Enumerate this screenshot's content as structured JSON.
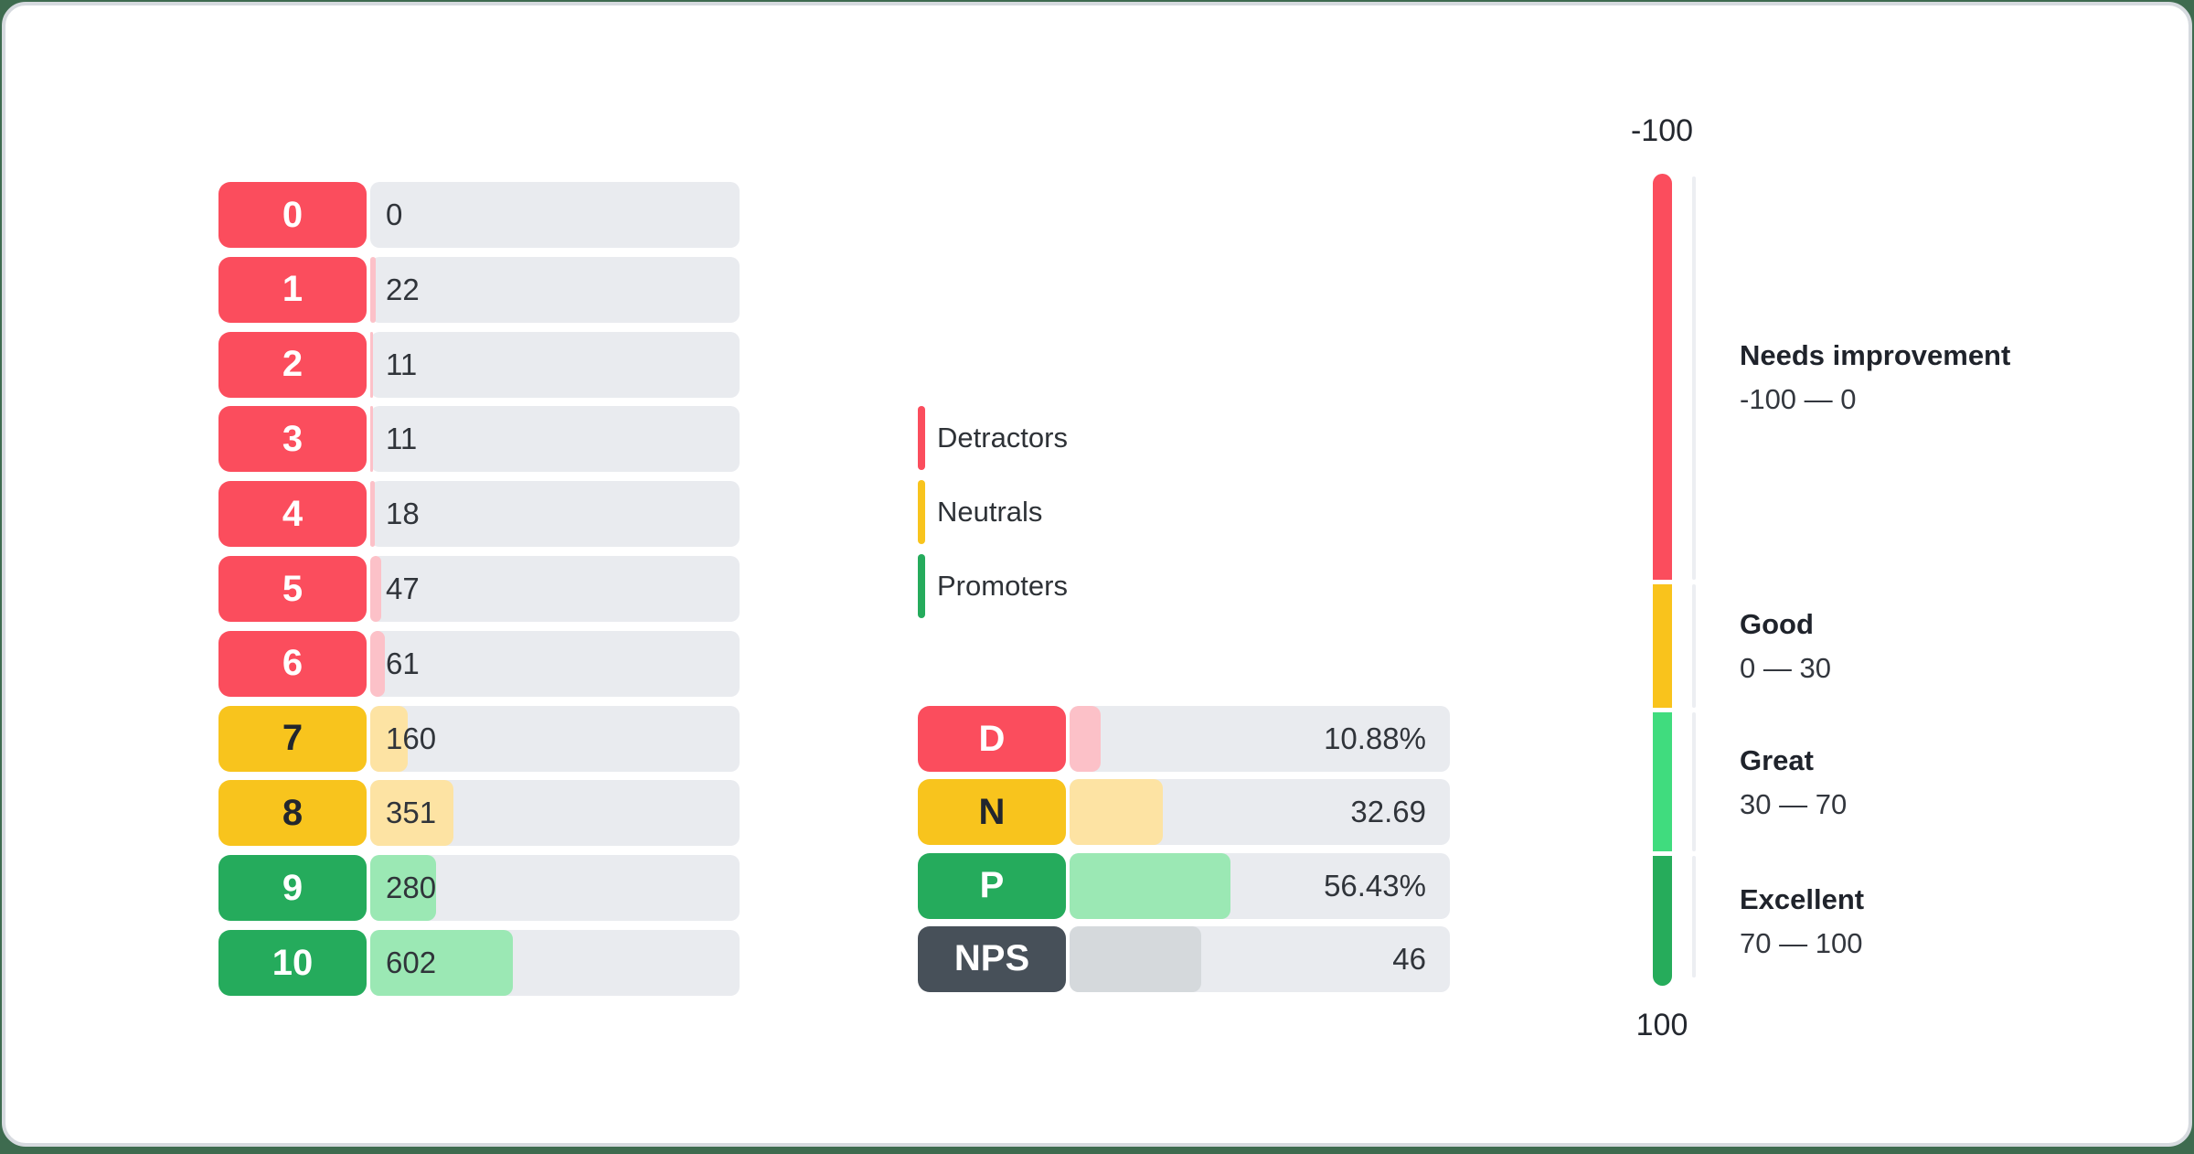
{
  "colors": {
    "page_bg": "#3E6B4F",
    "card_bg": "#FFFFFF",
    "card_border": "#D6DADF",
    "track": "#E9EBEF",
    "groups": {
      "detractor": {
        "badge": "#FB4D5D",
        "fill": "#FCC1C8",
        "text": "#FFFFFF"
      },
      "neutral": {
        "badge": "#F8C41D",
        "fill": "#FDE3A3",
        "text": "#22262E"
      },
      "promoter": {
        "badge": "#25AB5C",
        "fill": "#9BE8B4",
        "text": "#FFFFFF"
      },
      "nps": {
        "badge": "#475059",
        "fill": "#D5D9DC",
        "text": "#FFFFFF"
      }
    }
  },
  "distribution": {
    "rows": [
      {
        "label": "0",
        "value": 0,
        "display": "0",
        "group": "detractor"
      },
      {
        "label": "1",
        "value": 22,
        "display": "22",
        "group": "detractor"
      },
      {
        "label": "2",
        "value": 11,
        "display": "11",
        "group": "detractor"
      },
      {
        "label": "3",
        "value": 11,
        "display": "11",
        "group": "detractor"
      },
      {
        "label": "4",
        "value": 18,
        "display": "18",
        "group": "detractor"
      },
      {
        "label": "5",
        "value": 47,
        "display": "47",
        "group": "detractor"
      },
      {
        "label": "6",
        "value": 61,
        "display": "61",
        "group": "detractor"
      },
      {
        "label": "7",
        "value": 160,
        "display": "160",
        "group": "neutral"
      },
      {
        "label": "8",
        "value": 351,
        "display": "351",
        "group": "neutral"
      },
      {
        "label": "9",
        "value": 280,
        "display": "280",
        "group": "promoter"
      },
      {
        "label": "10",
        "value": 602,
        "display": "602",
        "group": "promoter"
      }
    ]
  },
  "legend": {
    "items": [
      {
        "label": "Detractors",
        "color": "#FB4D5D"
      },
      {
        "label": "Neutrals",
        "color": "#F8C41D"
      },
      {
        "label": "Promoters",
        "color": "#25AB5C"
      }
    ]
  },
  "summary": {
    "rows": [
      {
        "label": "D",
        "value": 10.88,
        "display": "10.88%",
        "group": "detractor"
      },
      {
        "label": "N",
        "value": 32.69,
        "display": "32.69",
        "group": "neutral"
      },
      {
        "label": "P",
        "value": 56.43,
        "display": "56.43%",
        "group": "promoter"
      },
      {
        "label": "NPS",
        "value": 46,
        "display": "46",
        "group": "nps"
      }
    ]
  },
  "gauge": {
    "top_label": "-100",
    "bottom_label": "100",
    "zones": [
      {
        "title": "Needs improvement",
        "range": "-100 — 0",
        "from": -100,
        "to": 0,
        "color": "#FB4D5D"
      },
      {
        "title": "Good",
        "range": "0 — 30",
        "from": 0,
        "to": 30,
        "color": "#F9C31C"
      },
      {
        "title": "Great",
        "range": "30 — 70",
        "from": 30,
        "to": 70,
        "color": "#40DC7E"
      },
      {
        "title": "Excellent",
        "range": "70 — 100",
        "from": 70,
        "to": 100,
        "color": "#26AC5B"
      }
    ]
  },
  "chart_data": [
    {
      "type": "bar",
      "orientation": "horizontal",
      "title": "NPS score distribution",
      "categories": [
        "0",
        "1",
        "2",
        "3",
        "4",
        "5",
        "6",
        "7",
        "8",
        "9",
        "10"
      ],
      "values": [
        0,
        22,
        11,
        11,
        18,
        47,
        61,
        160,
        351,
        280,
        602
      ],
      "series_groups": [
        "detractor",
        "detractor",
        "detractor",
        "detractor",
        "detractor",
        "detractor",
        "detractor",
        "neutral",
        "neutral",
        "promoter",
        "promoter"
      ],
      "xlabel": "",
      "ylabel": "",
      "grid": false,
      "legend_position": "none"
    },
    {
      "type": "bar",
      "orientation": "horizontal",
      "title": "NPS summary",
      "categories": [
        "D",
        "N",
        "P",
        "NPS"
      ],
      "values": [
        10.88,
        32.69,
        56.43,
        46
      ],
      "value_labels": [
        "10.88%",
        "32.69",
        "56.43%",
        "46"
      ],
      "legend_entries": [
        "Detractors",
        "Neutrals",
        "Promoters"
      ],
      "grid": false
    },
    {
      "type": "gauge",
      "title": "NPS scale",
      "axis_range": [
        -100,
        100
      ],
      "tick_labels": [
        "-100",
        "100"
      ],
      "zones": [
        {
          "label": "Needs improvement",
          "from": -100,
          "to": 0
        },
        {
          "label": "Good",
          "from": 0,
          "to": 30
        },
        {
          "label": "Great",
          "from": 30,
          "to": 70
        },
        {
          "label": "Excellent",
          "from": 70,
          "to": 100
        }
      ]
    }
  ]
}
